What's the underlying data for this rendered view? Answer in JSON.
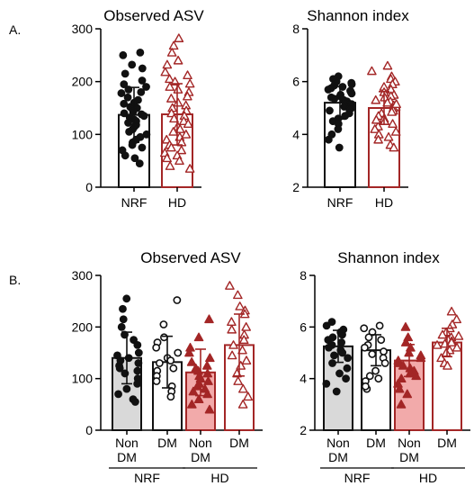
{
  "panel_labels": [
    "A.",
    "B."
  ],
  "colors": {
    "black": "#111111",
    "red": "#a32626",
    "grey_fill": "#d9d9d9",
    "pink_fill": "#f2aaaa",
    "open_fill": "#ffffff"
  },
  "chart_data": [
    {
      "type": "bar",
      "title": "Observed ASV",
      "categories": [
        "NRF",
        "HD"
      ],
      "group_labels": [],
      "ylim": [
        0,
        300
      ],
      "yticks": [
        0,
        100,
        200,
        300
      ],
      "values": [
        137,
        138
      ],
      "errors": [
        52,
        58
      ],
      "series_style": [
        {
          "fill": "#ffffff",
          "stroke": "#111111",
          "marker": "circle",
          "marker_fill": "#111111"
        },
        {
          "fill": "#ffffff",
          "stroke": "#a32626",
          "marker": "triangle",
          "marker_fill": "#ffffff"
        }
      ],
      "points": [
        [
          255,
          250,
          232,
          225,
          215,
          202,
          195,
          190,
          185,
          180,
          178,
          170,
          165,
          160,
          158,
          152,
          150,
          147,
          143,
          140,
          138,
          135,
          132,
          128,
          125,
          122,
          118,
          115,
          110,
          105,
          100,
          95,
          90,
          85,
          80,
          75,
          70,
          60,
          55,
          45
        ],
        [
          282,
          268,
          255,
          240,
          232,
          218,
          212,
          205,
          200,
          196,
          190,
          185,
          180,
          172,
          168,
          160,
          155,
          150,
          145,
          140,
          135,
          130,
          125,
          120,
          115,
          110,
          105,
          100,
          95,
          90,
          85,
          80,
          75,
          70,
          65,
          60,
          55,
          50,
          40,
          35
        ]
      ]
    },
    {
      "type": "bar",
      "title": "Shannon index",
      "categories": [
        "NRF",
        "HD"
      ],
      "group_labels": [],
      "ylim": [
        2,
        8
      ],
      "yticks": [
        2,
        4,
        6,
        8
      ],
      "values": [
        5.2,
        5.0
      ],
      "errors": [
        0.62,
        0.62
      ],
      "series_style": [
        {
          "fill": "#ffffff",
          "stroke": "#111111",
          "marker": "circle",
          "marker_fill": "#111111"
        },
        {
          "fill": "#ffffff",
          "stroke": "#a32626",
          "marker": "triangle",
          "marker_fill": "#ffffff"
        }
      ],
      "points": [
        [
          6.2,
          6.1,
          6.0,
          5.95,
          5.9,
          5.85,
          5.8,
          5.75,
          5.7,
          5.65,
          5.6,
          5.55,
          5.5,
          5.45,
          5.4,
          5.35,
          5.3,
          5.25,
          5.2,
          5.15,
          5.1,
          5.05,
          5.0,
          4.95,
          4.9,
          4.8,
          4.7,
          4.6,
          4.5,
          4.4,
          4.2,
          4.0,
          3.8,
          3.5
        ],
        [
          6.6,
          6.4,
          6.2,
          6.1,
          6.0,
          5.9,
          5.8,
          5.7,
          5.6,
          5.5,
          5.45,
          5.4,
          5.3,
          5.25,
          5.2,
          5.1,
          5.05,
          5.0,
          4.9,
          4.85,
          4.8,
          4.7,
          4.6,
          4.5,
          4.4,
          4.3,
          4.2,
          4.1,
          4.0,
          3.9,
          3.8,
          3.6,
          3.5,
          4.55,
          5.15
        ]
      ]
    },
    {
      "type": "bar",
      "title": "Observed ASV",
      "categories": [
        "Non DM",
        "DM",
        "Non DM",
        "DM"
      ],
      "group_labels": [
        "NRF",
        "HD"
      ],
      "ylim": [
        0,
        300
      ],
      "yticks": [
        0,
        100,
        200,
        300
      ],
      "values": [
        140,
        132,
        112,
        165
      ],
      "errors": [
        50,
        50,
        45,
        60
      ],
      "series_style": [
        {
          "fill": "#d9d9d9",
          "stroke": "#111111",
          "marker": "circle",
          "marker_fill": "#111111"
        },
        {
          "fill": "#ffffff",
          "stroke": "#111111",
          "marker": "circle",
          "marker_fill": "#ffffff"
        },
        {
          "fill": "#f2aaaa",
          "stroke": "#a32626",
          "marker": "triangle",
          "marker_fill": "#a32626"
        },
        {
          "fill": "#ffffff",
          "stroke": "#a32626",
          "marker": "triangle",
          "marker_fill": "#ffffff"
        }
      ],
      "points": [
        [
          255,
          235,
          215,
          200,
          185,
          175,
          165,
          150,
          145,
          140,
          135,
          130,
          125,
          120,
          115,
          110,
          100,
          90,
          80,
          70,
          60,
          55
        ],
        [
          252,
          205,
          180,
          170,
          160,
          150,
          140,
          135,
          130,
          120,
          115,
          105,
          95,
          85,
          75,
          65
        ],
        [
          215,
          180,
          160,
          150,
          140,
          132,
          125,
          120,
          115,
          110,
          105,
          100,
          95,
          90,
          85,
          80,
          75,
          70,
          60,
          50,
          40
        ],
        [
          280,
          262,
          240,
          232,
          225,
          210,
          200,
          195,
          185,
          175,
          165,
          155,
          145,
          135,
          125,
          110,
          95,
          80,
          65,
          50
        ]
      ]
    },
    {
      "type": "bar",
      "title": "Shannon index",
      "categories": [
        "Non DM",
        "DM",
        "Non DM",
        "DM"
      ],
      "group_labels": [
        "NRF",
        "HD"
      ],
      "ylim": [
        2,
        8
      ],
      "yticks": [
        2,
        4,
        6,
        8
      ],
      "values": [
        5.25,
        5.1,
        4.7,
        5.4
      ],
      "errors": [
        0.62,
        0.6,
        0.62,
        0.55
      ],
      "series_style": [
        {
          "fill": "#d9d9d9",
          "stroke": "#111111",
          "marker": "circle",
          "marker_fill": "#111111"
        },
        {
          "fill": "#ffffff",
          "stroke": "#111111",
          "marker": "circle",
          "marker_fill": "#ffffff"
        },
        {
          "fill": "#f2aaaa",
          "stroke": "#a32626",
          "marker": "triangle",
          "marker_fill": "#a32626"
        },
        {
          "fill": "#ffffff",
          "stroke": "#a32626",
          "marker": "triangle",
          "marker_fill": "#ffffff"
        }
      ],
      "points": [
        [
          6.2,
          6.05,
          5.9,
          5.8,
          5.7,
          5.6,
          5.5,
          5.4,
          5.3,
          5.2,
          5.1,
          5.0,
          4.9,
          4.8,
          4.6,
          4.4,
          4.2,
          4.0,
          3.8,
          3.5
        ],
        [
          6.05,
          5.95,
          5.8,
          5.6,
          5.5,
          5.3,
          5.2,
          5.05,
          4.95,
          4.8,
          4.6,
          4.3,
          4.1,
          3.9,
          3.6,
          3.7,
          4.0
        ],
        [
          6.0,
          5.6,
          5.4,
          5.2,
          5.0,
          4.9,
          4.8,
          4.7,
          4.6,
          4.5,
          4.4,
          4.3,
          4.2,
          4.0,
          3.8,
          3.6,
          3.4,
          3.0,
          4.1
        ],
        [
          6.6,
          6.3,
          6.1,
          5.95,
          5.8,
          5.7,
          5.6,
          5.5,
          5.45,
          5.4,
          5.3,
          5.2,
          5.1,
          5.0,
          4.8,
          4.6,
          4.5,
          5.35,
          5.65
        ]
      ]
    }
  ]
}
